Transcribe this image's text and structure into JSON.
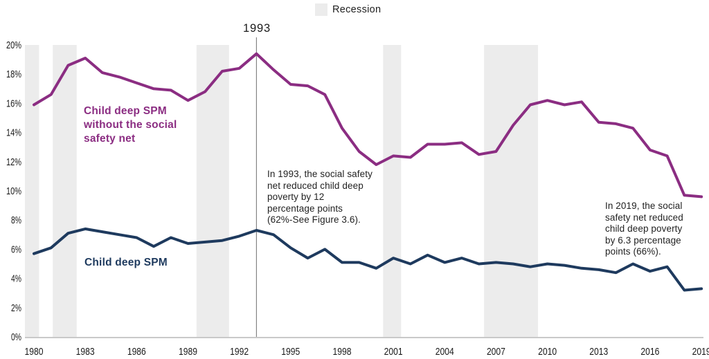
{
  "legend": {
    "label": "Recession",
    "swatch_color": "#ececec"
  },
  "annotations": {
    "peak_year_label": "1993",
    "note_1993": "In 1993, the social\nnet reduced child deep\npoverty by 12\npercentage points\n(62%-See Figure 3.6).",
    "note_1993_full": "In 1993, the social safety net reduced child deep poverty by 12 percentage points (62%-See Figure 3.6).",
    "note_1993_lines": "In 1993, the social safety\nnet reduced child deep\npoverty by 12\npercentage points\n(62%-See Figure 3.6).",
    "note_2019_lines": "In 2019, the social\nsafety net reduced\nchild deep poverty\nby 6.3 percentage\npoints (66%).",
    "note_2019_full": "In 2019, the social safety net reduced child deep poverty by 6.3 percentage points (66%)."
  },
  "series_labels": {
    "without_net": "Child deep SPM\nwithout the social\nsafety net",
    "with_net": "Child deep SPM"
  },
  "colors": {
    "purple_line": "#8b2d82",
    "blue_line": "#1e3a5e",
    "recession_band": "#ececec",
    "axis_line": "#c9c9c9",
    "vline": "#6e6e6e",
    "tick_text": "#1a1a1a"
  },
  "chart_data": {
    "type": "line",
    "x": [
      1980,
      1981,
      1982,
      1983,
      1984,
      1985,
      1986,
      1987,
      1988,
      1989,
      1990,
      1991,
      1992,
      1993,
      1994,
      1995,
      1996,
      1997,
      1998,
      1999,
      2000,
      2001,
      2002,
      2003,
      2004,
      2005,
      2006,
      2007,
      2008,
      2009,
      2010,
      2011,
      2012,
      2013,
      2014,
      2015,
      2016,
      2017,
      2018,
      2019
    ],
    "series": [
      {
        "name": "Child deep SPM without the social safety net",
        "color": "#8b2d82",
        "values": [
          15.9,
          16.6,
          18.6,
          19.1,
          18.1,
          17.8,
          17.4,
          17.0,
          16.9,
          16.2,
          16.8,
          18.2,
          18.4,
          19.4,
          18.3,
          17.3,
          17.2,
          16.6,
          14.3,
          12.7,
          11.8,
          12.4,
          12.3,
          13.2,
          13.2,
          13.3,
          12.5,
          12.7,
          14.5,
          15.9,
          16.2,
          15.9,
          16.1,
          14.7,
          14.6,
          14.3,
          12.8,
          12.4,
          9.7,
          9.6
        ]
      },
      {
        "name": "Child deep SPM",
        "color": "#1e3a5e",
        "values": [
          5.7,
          6.1,
          7.1,
          7.4,
          7.2,
          7.0,
          6.8,
          6.2,
          6.8,
          6.4,
          6.5,
          6.6,
          6.9,
          7.3,
          7.0,
          6.1,
          5.4,
          6.0,
          5.1,
          5.1,
          4.7,
          5.4,
          5.0,
          5.6,
          5.1,
          5.4,
          5.0,
          5.1,
          5.0,
          4.8,
          5.0,
          4.9,
          4.7,
          4.6,
          4.4,
          5.0,
          4.5,
          4.8,
          3.2,
          3.3
        ]
      }
    ],
    "xtick_labels": [
      "1980",
      "1983",
      "1986",
      "1989",
      "1992",
      "1995",
      "1998",
      "2001",
      "2004",
      "2007",
      "2010",
      "2013",
      "2016",
      "2019"
    ],
    "xtick_years": [
      1980,
      1983,
      1986,
      1989,
      1992,
      1995,
      1998,
      2001,
      2004,
      2007,
      2010,
      2013,
      2016,
      2019
    ],
    "ytick_labels": [
      "0%",
      "2%",
      "4%",
      "6%",
      "8%",
      "10%",
      "12%",
      "14%",
      "16%",
      "18%",
      "20%"
    ],
    "ytick_values": [
      0,
      2,
      4,
      6,
      8,
      10,
      12,
      14,
      16,
      18,
      20
    ],
    "ylim": [
      0,
      20
    ],
    "grid": false,
    "legend_position": "top-center",
    "recessions": [
      [
        1979.45,
        1980.3
      ],
      [
        1981.1,
        1982.5
      ],
      [
        1989.5,
        1991.4
      ],
      [
        2000.4,
        2001.45
      ],
      [
        2006.3,
        2009.45
      ]
    ],
    "vline_year": 1993
  }
}
